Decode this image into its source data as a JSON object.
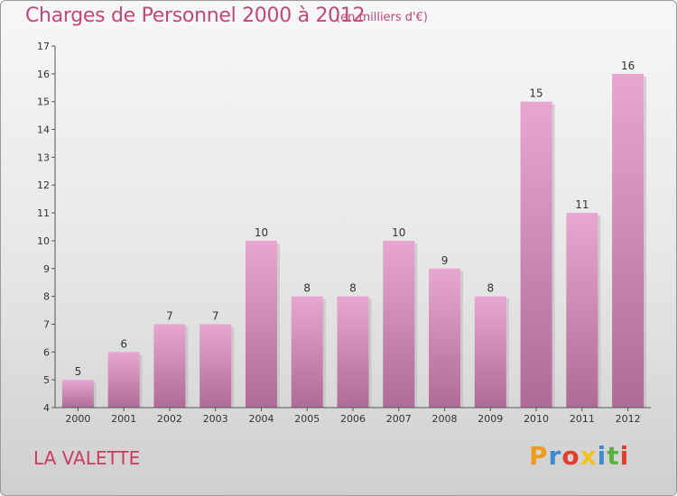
{
  "header": {
    "title": "Charges de Personnel 2000 à 2012",
    "unit": "(en milliers d'€)"
  },
  "footer": {
    "commune": "LA VALETTE",
    "logo_text": "Proxiti",
    "logo_colors": [
      "#f29a1c",
      "#3d8ccf",
      "#e23d2d",
      "#f2c21c",
      "#3d8ccf",
      "#59b342",
      "#e23d2d"
    ]
  },
  "colors": {
    "bar_top": "#e7a7d1",
    "bar_bottom": "#b06a96",
    "accent": "#c2477a"
  },
  "chart_data": {
    "type": "bar",
    "categories": [
      "2000",
      "2001",
      "2002",
      "2003",
      "2004",
      "2005",
      "2006",
      "2007",
      "2008",
      "2009",
      "2010",
      "2011",
      "2012"
    ],
    "values": [
      5,
      6,
      7,
      7,
      10,
      8,
      8,
      10,
      9,
      8,
      15,
      11,
      16
    ],
    "ylim": [
      4,
      17
    ],
    "yticks": [
      4,
      5,
      6,
      7,
      8,
      9,
      10,
      11,
      12,
      13,
      14,
      15,
      16,
      17
    ],
    "title": "Charges de Personnel 2000 à 2012",
    "ylabel": "(en milliers d'€)",
    "grid": false,
    "legend": "none"
  }
}
